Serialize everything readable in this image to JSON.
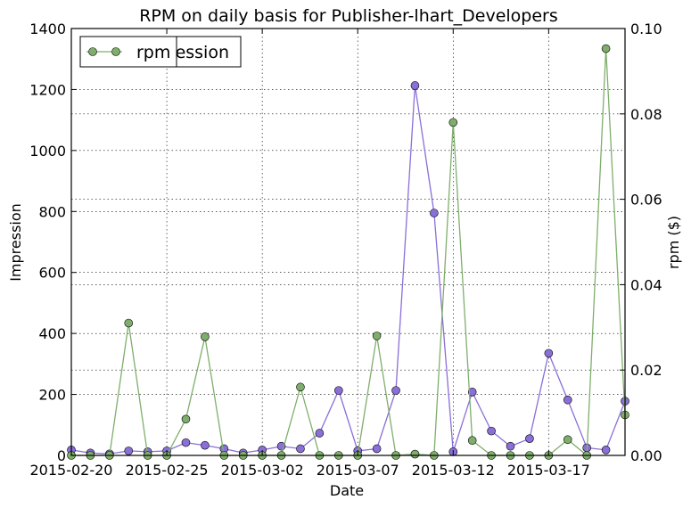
{
  "chart_data": {
    "type": "line",
    "title": "RPM on daily basis for Publisher-lhart_Developers",
    "xlabel": "Date",
    "ylabel": "Impression",
    "ylabel_right": "rpm ($)",
    "x": [
      "2015-02-20",
      "2015-02-21",
      "2015-02-22",
      "2015-02-23",
      "2015-02-24",
      "2015-02-25",
      "2015-02-26",
      "2015-02-27",
      "2015-02-28",
      "2015-03-01",
      "2015-03-02",
      "2015-03-03",
      "2015-03-04",
      "2015-03-05",
      "2015-03-06",
      "2015-03-07",
      "2015-03-08",
      "2015-03-09",
      "2015-03-10",
      "2015-03-11",
      "2015-03-12",
      "2015-03-13",
      "2015-03-14",
      "2015-03-15",
      "2015-03-16",
      "2015-03-17",
      "2015-03-18",
      "2015-03-19",
      "2015-03-20",
      "2015-03-21"
    ],
    "x_ticks": [
      "2015-02-20",
      "2015-02-25",
      "2015-03-02",
      "2015-03-07",
      "2015-03-12",
      "2015-03-17"
    ],
    "ylim_left": [
      0,
      1400
    ],
    "yticks_left": [
      0,
      200,
      400,
      600,
      800,
      1000,
      1200,
      1400
    ],
    "ylim_right": [
      0,
      0.1
    ],
    "yticks_right": [
      "0.00",
      "0.02",
      "0.04",
      "0.06",
      "0.08",
      "0.10"
    ],
    "grid": true,
    "legend_placement": "top-left",
    "series": [
      {
        "name": "Impression",
        "axis": "left",
        "color": "#8a6fd8",
        "values": [
          18,
          8,
          5,
          15,
          12,
          15,
          42,
          33,
          22,
          8,
          18,
          30,
          22,
          73,
          213,
          15,
          22,
          213,
          1213,
          795,
          12,
          208,
          80,
          30,
          55,
          335,
          182,
          25,
          18,
          178
        ]
      },
      {
        "name": "rpm",
        "axis": "right",
        "color": "#7fae6c",
        "values": [
          0.0,
          0.0,
          0.0,
          0.031,
          0.0,
          0.0,
          0.0085,
          0.0278,
          0.0,
          0.0,
          0.0,
          0.0,
          0.016,
          0.0,
          0.0,
          0.0,
          0.028,
          0.0,
          0.0003,
          0.0,
          0.078,
          0.0035,
          0.0,
          0.0,
          0.0,
          0.0,
          0.0037,
          0.0,
          0.0953,
          0.0095
        ]
      }
    ],
    "legend": {
      "back_label": "Impression",
      "front_label": "rpm"
    }
  }
}
